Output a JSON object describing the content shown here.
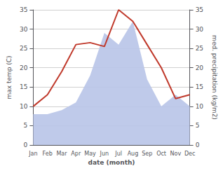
{
  "chart_data": {
    "type": "line",
    "xlabel": "date (month)",
    "ylabel": "max temp (C)",
    "y2label": "med. precipitation (kg/m2)",
    "categories": [
      "Jan",
      "Feb",
      "Mar",
      "Apr",
      "May",
      "Jun",
      "Jul",
      "Aug",
      "Sep",
      "Oct",
      "Nov",
      "Dec"
    ],
    "series": [
      {
        "type": "area",
        "color": "#b8c4e8",
        "axis": "y2",
        "values": [
          8,
          8,
          9,
          11,
          18,
          29,
          26,
          32,
          17,
          10,
          13,
          10
        ]
      },
      {
        "type": "line",
        "color": "#c0392b",
        "values": [
          10,
          13,
          19,
          26,
          26.5,
          25.5,
          35,
          32,
          26,
          20,
          12,
          13
        ]
      }
    ],
    "ylim": [
      0,
      35
    ],
    "yticks": [
      0,
      5,
      10,
      15,
      20,
      25,
      30,
      35
    ],
    "y2lim": [
      0,
      35
    ],
    "y2ticks": [
      0,
      5,
      10,
      15,
      20,
      25,
      30,
      35
    ],
    "grid": true
  }
}
